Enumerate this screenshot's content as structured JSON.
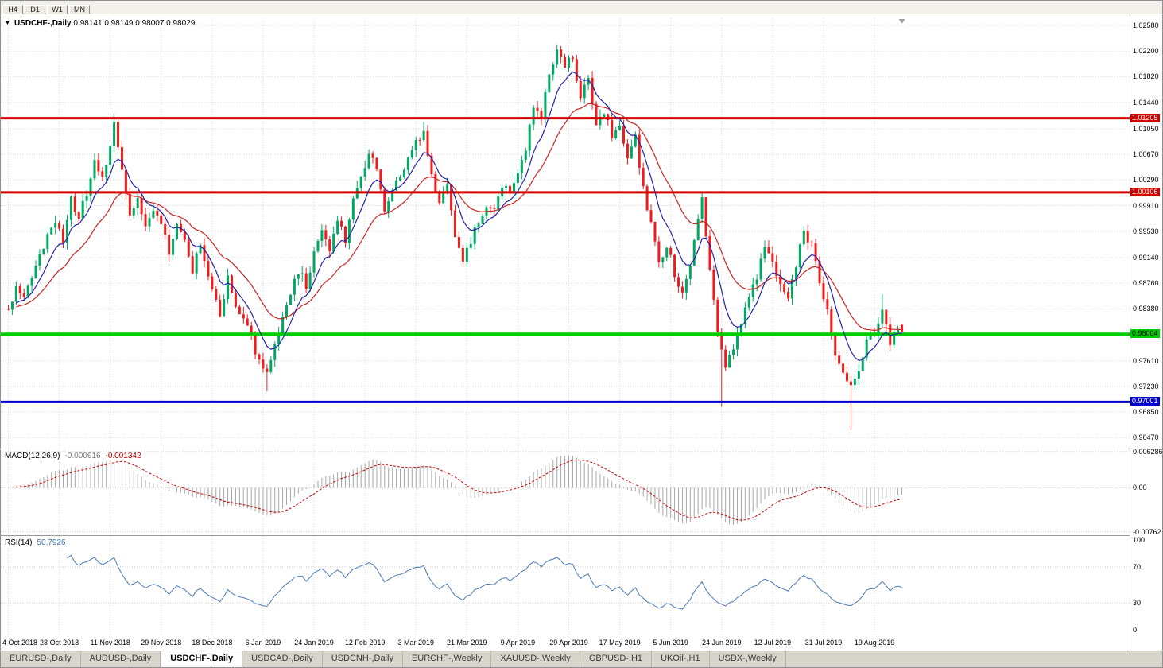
{
  "toolbar": {
    "timeframes": [
      "H4",
      "D1",
      "W1",
      "MN"
    ]
  },
  "chart": {
    "title": "USDCHF-,Daily",
    "ohlc_text": "0.98141 0.98149 0.98007 0.98029"
  },
  "macd": {
    "label": "MACD(12,26,9)",
    "value_main": "-0.000616",
    "value_signal": "-0.001342",
    "axis": [
      {
        "text": "0.006286",
        "v": 0.006286
      },
      {
        "text": "0.00",
        "v": 0
      },
      {
        "text": "-0.00762",
        "v": -0.00762
      }
    ]
  },
  "rsi": {
    "label": "RSI(14)",
    "value_text": "50.7926",
    "axis": [
      {
        "text": "100",
        "v": 100
      },
      {
        "text": "70",
        "v": 70
      },
      {
        "text": "30",
        "v": 30
      },
      {
        "text": "0",
        "v": 0
      }
    ],
    "levels": [
      70,
      30
    ]
  },
  "tabs": [
    {
      "label": "EURUSD-,Daily",
      "active": false
    },
    {
      "label": "AUDUSD-,Daily",
      "active": false
    },
    {
      "label": "USDCHF-,Daily",
      "active": true
    },
    {
      "label": "USDCAD-,Daily",
      "active": false
    },
    {
      "label": "USDCNH-,Daily",
      "active": false
    },
    {
      "label": "EURCHF-,Weekly",
      "active": false
    },
    {
      "label": "XAUUSD-,Weekly",
      "active": false
    },
    {
      "label": "GBPUSD-,H1",
      "active": false
    },
    {
      "label": "UKOil-,H1",
      "active": false
    },
    {
      "label": "USDX-,Weekly",
      "active": false
    }
  ],
  "chart_data": {
    "type": "candlestick",
    "symbol": "USDCHF-",
    "period": "Daily",
    "open": "0.98141",
    "high": "0.98149",
    "low": "0.98007",
    "close": "0.98029",
    "bars": 229,
    "bars_per_label": 13,
    "price_range": {
      "top": 1.02686,
      "bottom": 0.9631
    },
    "macd_axis_range": {
      "top": 0.0068,
      "bottom": -0.0082
    },
    "price_axis_labels": [
      "1.02580",
      "1.02200",
      "1.01820",
      "1.01440",
      "1.01050",
      "1.00670",
      "1.00290",
      "0.99910",
      "0.99530",
      "0.99140",
      "0.98760",
      "0.98380",
      "0.97610",
      "0.97230",
      "0.96850",
      "0.96470"
    ],
    "date_labels": [
      "4 Oct 2018",
      "23 Oct 2018",
      "11 Nov 2018",
      "29 Nov 2018",
      "18 Dec 2018",
      "6 Jan 2019",
      "24 Jan 2019",
      "12 Feb 2019",
      "3 Mar 2019",
      "21 Mar 2019",
      "9 Apr 2019",
      "29 Apr 2019",
      "17 May 2019",
      "5 Jun 2019",
      "24 Jun 2019",
      "12 Jul 2019",
      "31 Jul 2019",
      "19 Aug 2019"
    ],
    "hlines": [
      {
        "price": 1.01205,
        "text": "1.01205",
        "color": "#d40000",
        "badge_text_color": "#ffffff",
        "thickness": 3
      },
      {
        "price": 1.00106,
        "text": "1.00106",
        "color": "#d40000",
        "badge_text_color": "#ffffff",
        "thickness": 3
      },
      {
        "price": 0.98004,
        "text": "0.98004",
        "color": "#00cc00",
        "badge_text_color": "#000000",
        "thickness": 4
      },
      {
        "price": 0.97001,
        "text": "0.97001",
        "color": "#0000cc",
        "badge_text_color": "#ffffff",
        "thickness": 3
      }
    ],
    "indicators": {
      "macd_fast": 12,
      "macd_slow": 26,
      "macd_signal": 9,
      "rsi_period": 14,
      "ma_fast": 8,
      "ma_slow": 21
    },
    "colors": {
      "up": "#00a862",
      "down": "#ee1c1c",
      "ma_fast": "#2222aa",
      "ma_slow": "#cc2222",
      "macd_hist": "#a6a6a6",
      "macd_signal": "#cc0000",
      "rsi": "#4a7ab5",
      "grid": "#dadada",
      "separator": "#9a9a9a"
    },
    "anchors": [
      [
        0,
        0.9838
      ],
      [
        2,
        0.9872
      ],
      [
        4,
        0.9858
      ],
      [
        7,
        0.9902
      ],
      [
        10,
        0.9948
      ],
      [
        12,
        0.9966
      ],
      [
        14,
        0.9942
      ],
      [
        16,
        0.9998
      ],
      [
        18,
        0.9974
      ],
      [
        20,
        1.0012
      ],
      [
        22,
        1.006
      ],
      [
        24,
        1.0032
      ],
      [
        26,
        1.0082
      ],
      [
        27,
        1.011
      ],
      [
        29,
        1.0038
      ],
      [
        31,
        0.9976
      ],
      [
        33,
        1.0002
      ],
      [
        35,
        0.9956
      ],
      [
        37,
        0.9988
      ],
      [
        39,
        0.9964
      ],
      [
        41,
        0.9922
      ],
      [
        43,
        0.9966
      ],
      [
        45,
        0.994
      ],
      [
        47,
        0.9896
      ],
      [
        49,
        0.9936
      ],
      [
        52,
        0.987
      ],
      [
        54,
        0.983
      ],
      [
        56,
        0.9888
      ],
      [
        58,
        0.9844
      ],
      [
        60,
        0.9822
      ],
      [
        62,
        0.9792
      ],
      [
        64,
        0.9762
      ],
      [
        66,
        0.9744
      ],
      [
        68,
        0.978
      ],
      [
        70,
        0.9822
      ],
      [
        72,
        0.9862
      ],
      [
        74,
        0.9895
      ],
      [
        76,
        0.9874
      ],
      [
        78,
        0.9922
      ],
      [
        80,
        0.9958
      ],
      [
        82,
        0.9922
      ],
      [
        84,
        0.9972
      ],
      [
        86,
        0.9942
      ],
      [
        88,
        1.0006
      ],
      [
        90,
        1.0034
      ],
      [
        92,
        1.0068
      ],
      [
        94,
        1.0044
      ],
      [
        96,
        0.9988
      ],
      [
        98,
        1.001
      ],
      [
        100,
        1.0036
      ],
      [
        102,
        1.0058
      ],
      [
        104,
        1.0082
      ],
      [
        106,
        1.0106
      ],
      [
        108,
        1.0032
      ],
      [
        110,
        0.9994
      ],
      [
        112,
        1.0018
      ],
      [
        114,
        0.9944
      ],
      [
        116,
        0.9914
      ],
      [
        118,
        0.994
      ],
      [
        120,
        0.9966
      ],
      [
        122,
        0.9992
      ],
      [
        124,
        0.998
      ],
      [
        126,
        1.0022
      ],
      [
        128,
        1.0006
      ],
      [
        130,
        1.0034
      ],
      [
        132,
        1.0074
      ],
      [
        134,
        1.0136
      ],
      [
        136,
        1.012
      ],
      [
        138,
        1.0186
      ],
      [
        140,
        1.0222
      ],
      [
        142,
        1.0196
      ],
      [
        144,
        1.0212
      ],
      [
        146,
        1.0152
      ],
      [
        148,
        1.0178
      ],
      [
        150,
        1.0106
      ],
      [
        152,
        1.0132
      ],
      [
        154,
        1.0094
      ],
      [
        156,
        1.0104
      ],
      [
        158,
        1.0064
      ],
      [
        160,
        1.009
      ],
      [
        162,
        1.0016
      ],
      [
        164,
        0.9964
      ],
      [
        166,
        0.9906
      ],
      [
        168,
        0.9934
      ],
      [
        170,
        0.989
      ],
      [
        172,
        0.9864
      ],
      [
        174,
        0.9904
      ],
      [
        176,
        0.9974
      ],
      [
        177,
        0.9998
      ],
      [
        179,
        0.9896
      ],
      [
        181,
        0.9798
      ],
      [
        183,
        0.9756
      ],
      [
        185,
        0.9784
      ],
      [
        187,
        0.9814
      ],
      [
        189,
        0.9858
      ],
      [
        191,
        0.9888
      ],
      [
        193,
        0.9934
      ],
      [
        195,
        0.9904
      ],
      [
        197,
        0.987
      ],
      [
        199,
        0.9854
      ],
      [
        201,
        0.9904
      ],
      [
        203,
        0.9954
      ],
      [
        205,
        0.993
      ],
      [
        207,
        0.9882
      ],
      [
        209,
        0.9832
      ],
      [
        211,
        0.9775
      ],
      [
        213,
        0.9738
      ],
      [
        215,
        0.972
      ],
      [
        217,
        0.9752
      ],
      [
        219,
        0.979
      ],
      [
        221,
        0.9802
      ],
      [
        223,
        0.984
      ],
      [
        225,
        0.9786
      ],
      [
        227,
        0.9812
      ],
      [
        228,
        0.9803
      ]
    ],
    "spikes": [
      [
        27,
        "h",
        1.0128
      ],
      [
        66,
        "l",
        0.9716
      ],
      [
        106,
        "h",
        1.0115
      ],
      [
        140,
        "h",
        1.023
      ],
      [
        177,
        "h",
        1.0008
      ],
      [
        182,
        "l",
        0.9693
      ],
      [
        215,
        "l",
        0.9658
      ],
      [
        223,
        "h",
        0.986
      ]
    ]
  }
}
